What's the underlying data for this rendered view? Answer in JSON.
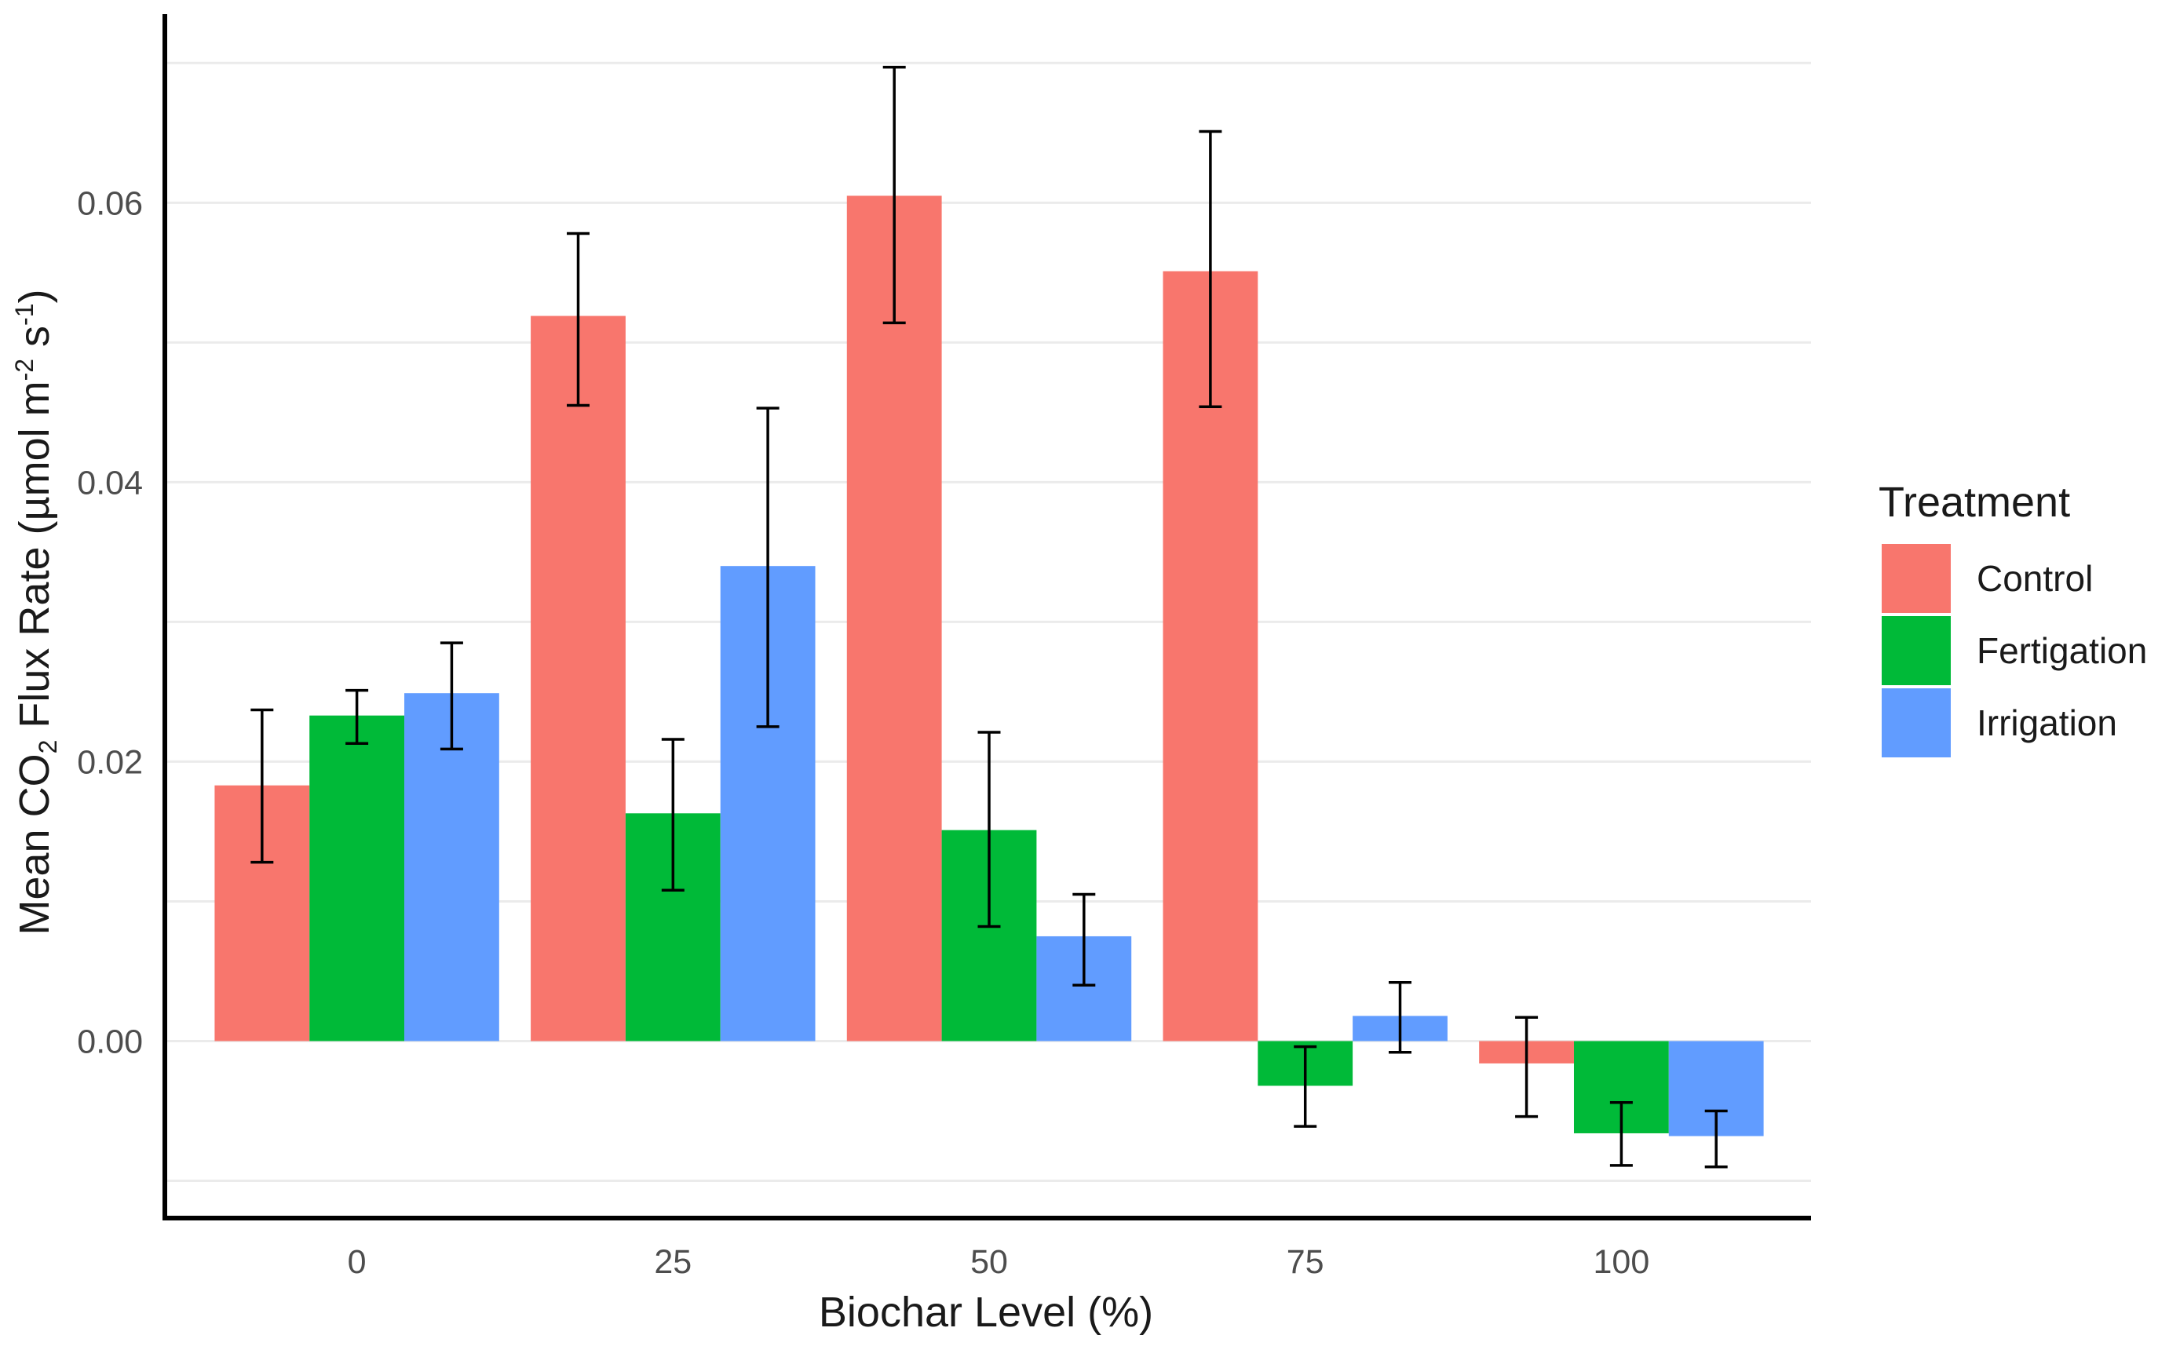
{
  "chart_data": {
    "type": "bar",
    "title": "",
    "xlabel": "Biochar Level (%)",
    "ylabel_parts": {
      "prefix": "Mean CO",
      "sub": "2",
      "middle": " Flux Rate (µmol m",
      "sup1": "-2",
      "space": " s",
      "sup2": "-1",
      "suffix": ")"
    },
    "categories": [
      "0",
      "25",
      "50",
      "75",
      "100"
    ],
    "ylim": [
      -0.0125,
      0.0735
    ],
    "yticks": [
      0.0,
      0.02,
      0.04,
      0.06
    ],
    "ytick_labels": [
      "0.00",
      "0.02",
      "0.04",
      "0.06"
    ],
    "grid": true,
    "legend": {
      "title": "Treatment",
      "position": "right"
    },
    "series": [
      {
        "name": "Control",
        "color": "#F8766D",
        "values": [
          0.0183,
          0.0519,
          0.0605,
          0.0551,
          -0.0016
        ],
        "err_low": [
          0.0128,
          0.0455,
          0.0514,
          0.0454,
          -0.0054
        ],
        "err_high": [
          0.0237,
          0.0578,
          0.0697,
          0.0651,
          0.0017
        ]
      },
      {
        "name": "Fertigation",
        "color": "#00BA38",
        "values": [
          0.0233,
          0.0163,
          0.0151,
          -0.0032,
          -0.0066
        ],
        "err_low": [
          0.0213,
          0.0108,
          0.0082,
          -0.0061,
          -0.0089
        ],
        "err_high": [
          0.0251,
          0.0216,
          0.0221,
          -0.0004,
          -0.0044
        ]
      },
      {
        "name": "Irrigation",
        "color": "#619CFF",
        "values": [
          0.0249,
          0.034,
          0.0075,
          0.0018,
          -0.0068
        ],
        "err_low": [
          0.0209,
          0.0225,
          0.004,
          -0.0008,
          -0.009
        ],
        "err_high": [
          0.0285,
          0.0453,
          0.0105,
          0.0042,
          -0.005
        ]
      }
    ]
  }
}
